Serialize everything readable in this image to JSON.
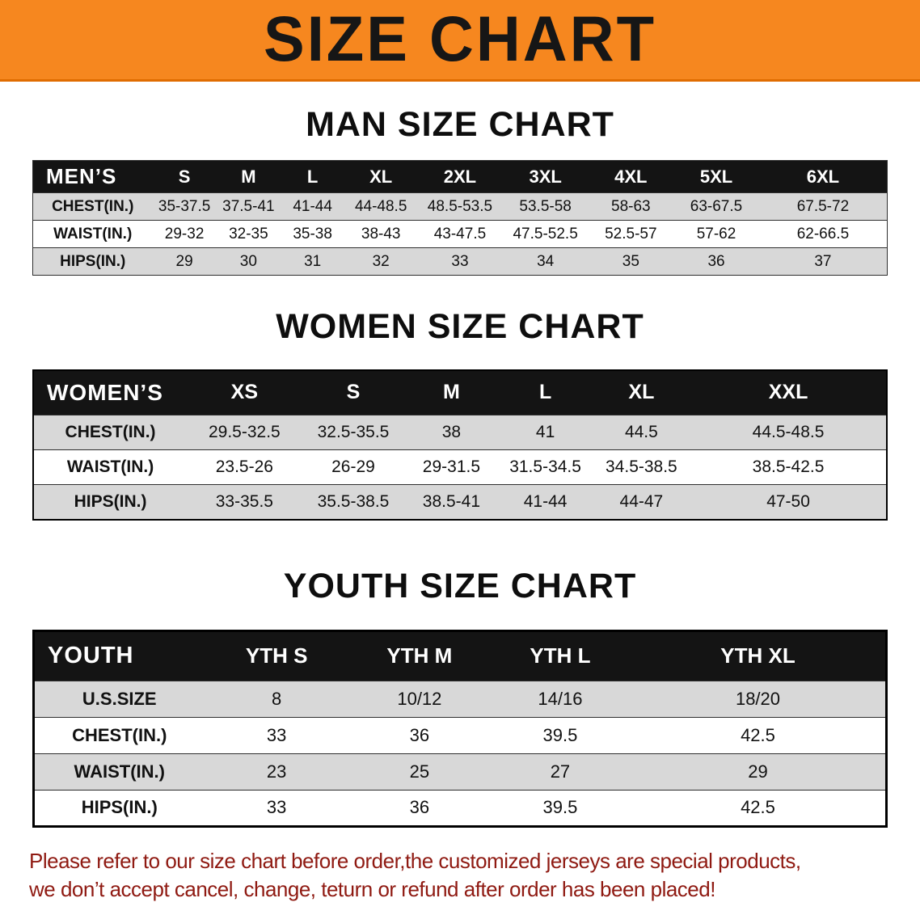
{
  "banner": {
    "title": "SIZE CHART",
    "bg_color": "#f6871f"
  },
  "sections": [
    {
      "key": "men",
      "title": "MAN SIZE CHART",
      "columns": [
        "MEN’S",
        "S",
        "M",
        "L",
        "XL",
        "2XL",
        "3XL",
        "4XL",
        "5XL",
        "6XL"
      ],
      "rows": [
        {
          "label": "CHEST(IN.)",
          "values": [
            "35-37.5",
            "37.5-41",
            "41-44",
            "44-48.5",
            "48.5-53.5",
            "53.5-58",
            "58-63",
            "63-67.5",
            "67.5-72"
          ]
        },
        {
          "label": "WAIST(IN.)",
          "values": [
            "29-32",
            "32-35",
            "35-38",
            "38-43",
            "43-47.5",
            "47.5-52.5",
            "52.5-57",
            "57-62",
            "62-66.5"
          ]
        },
        {
          "label": "HIPS(IN.)",
          "values": [
            "29",
            "30",
            "31",
            "32",
            "33",
            "34",
            "35",
            "36",
            "37"
          ]
        }
      ]
    },
    {
      "key": "women",
      "title": "WOMEN SIZE CHART",
      "columns": [
        "WOMEN’S",
        "XS",
        "S",
        "M",
        "L",
        "XL",
        "XXL"
      ],
      "rows": [
        {
          "label": "CHEST(IN.)",
          "values": [
            "29.5-32.5",
            "32.5-35.5",
            "38",
            "41",
            "44.5",
            "44.5-48.5"
          ]
        },
        {
          "label": "WAIST(IN.)",
          "values": [
            "23.5-26",
            "26-29",
            "29-31.5",
            "31.5-34.5",
            "34.5-38.5",
            "38.5-42.5"
          ]
        },
        {
          "label": "HIPS(IN.)",
          "values": [
            "33-35.5",
            "35.5-38.5",
            "38.5-41",
            "41-44",
            "44-47",
            "47-50"
          ]
        }
      ]
    },
    {
      "key": "youth",
      "title": "YOUTH SIZE CHART",
      "columns": [
        "YOUTH",
        "YTH S",
        "YTH M",
        "YTH L",
        "YTH XL"
      ],
      "rows": [
        {
          "label": "U.S.SIZE",
          "values": [
            "8",
            "10/12",
            "14/16",
            "18/20"
          ]
        },
        {
          "label": "CHEST(IN.)",
          "values": [
            "33",
            "36",
            "39.5",
            "42.5"
          ]
        },
        {
          "label": "WAIST(IN.)",
          "values": [
            "23",
            "25",
            "27",
            "29"
          ]
        },
        {
          "label": "HIPS(IN.)",
          "values": [
            "33",
            "36",
            "39.5",
            "42.5"
          ]
        }
      ]
    }
  ],
  "footer": {
    "line1": "Please refer to our size chart before order,the customized jerseys are special products,",
    "line2": "we don’t accept cancel, change, teturn or refund after order has been placed!",
    "color": "#8f1a12"
  }
}
